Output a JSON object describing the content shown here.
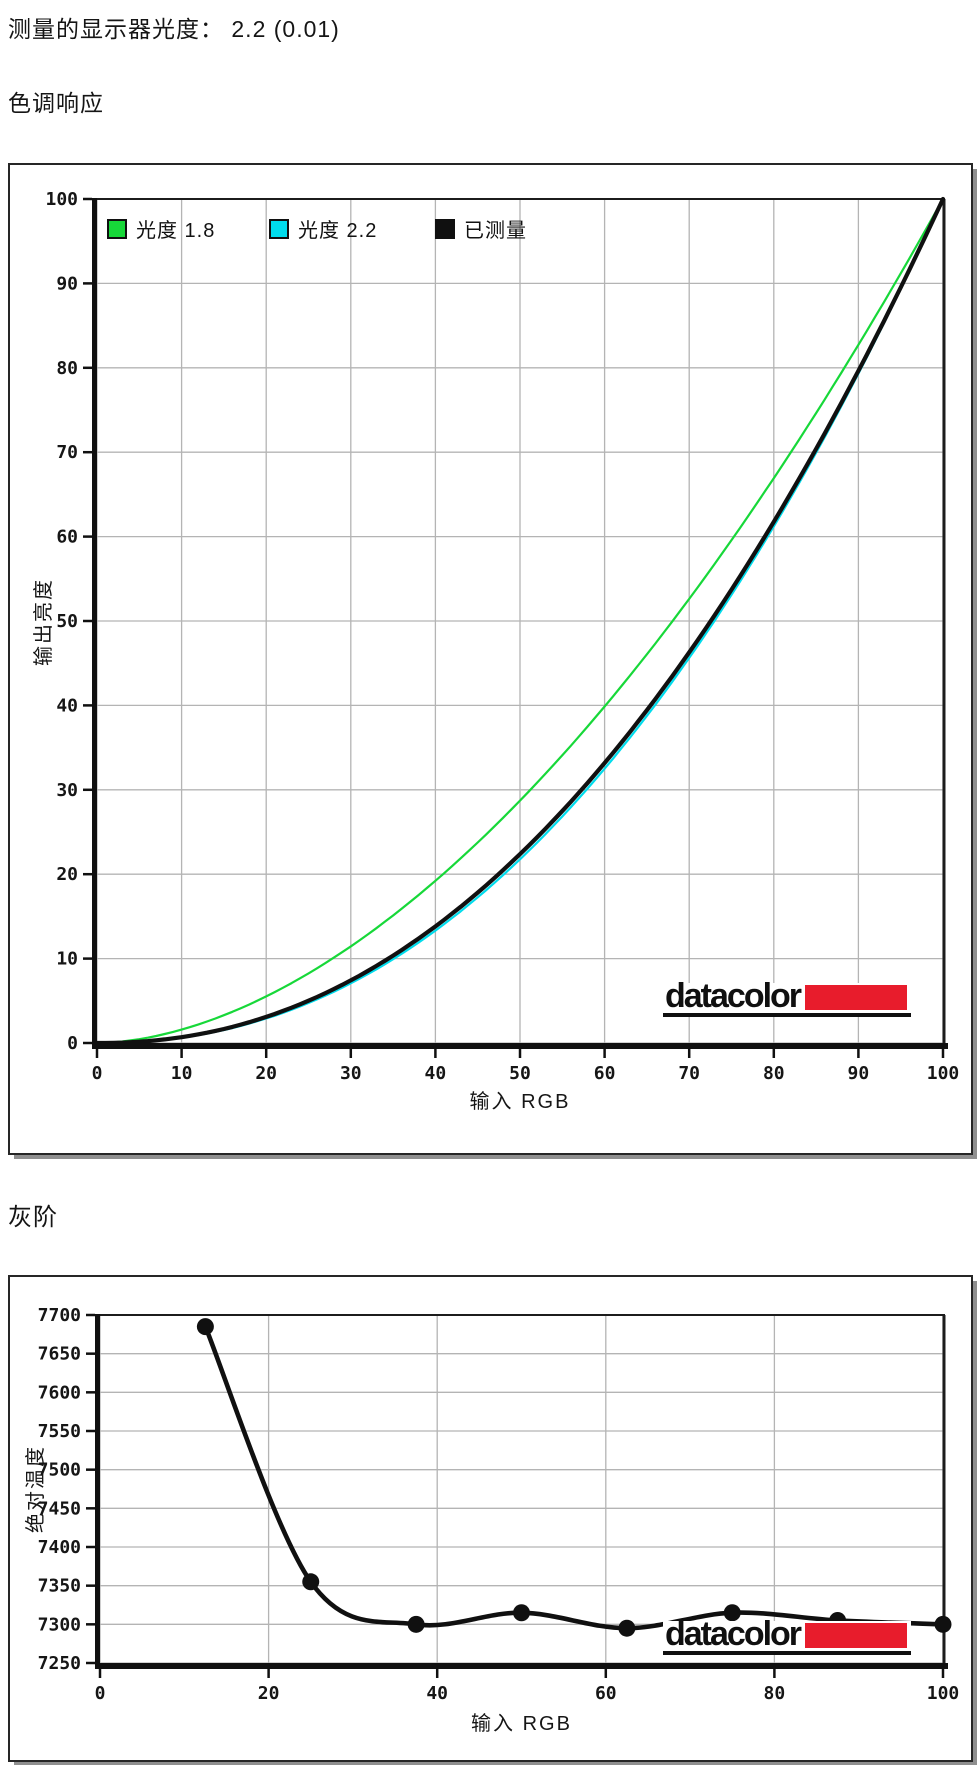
{
  "page": {
    "measured_gamma_heading": "测量的显示器光度：  2.2 (0.01)",
    "section1_title": "色调响应",
    "section2_title": "灰阶"
  },
  "branding": {
    "logo_text": "datacolor",
    "logo_red_color": "#e81c2c"
  },
  "colors": {
    "gridline": "#b4b4b4",
    "axis": "#101010",
    "gamma18_green": "#17d839",
    "gamma22_cyan": "#00dcec",
    "measured_black": "#101010"
  },
  "chart_data": [
    {
      "type": "line",
      "title": "色调响应",
      "xlabel": "输入 RGB",
      "ylabel": "输出亮度",
      "xlim": [
        0,
        100
      ],
      "ylim": [
        0,
        100
      ],
      "xticks": [
        0,
        10,
        20,
        30,
        40,
        50,
        60,
        70,
        80,
        90,
        100
      ],
      "yticks": [
        0,
        10,
        20,
        30,
        40,
        50,
        60,
        70,
        80,
        90,
        100
      ],
      "grid": true,
      "legend_position": "top-left",
      "x_samples": [
        0,
        10,
        20,
        30,
        40,
        50,
        60,
        70,
        80,
        90,
        100
      ],
      "series": [
        {
          "name": "光度 1.8",
          "color": "#17d839",
          "width": 2.2,
          "gamma": 1.8,
          "values": [
            0,
            1.6,
            5.5,
            11.5,
            19.2,
            28.7,
            39.8,
            52.6,
            66.9,
            82.7,
            100
          ]
        },
        {
          "name": "光度 2.2",
          "color": "#00dcec",
          "width": 2.2,
          "gamma": 2.2,
          "values": [
            0,
            0.6,
            2.9,
            7.1,
            13.3,
            21.8,
            32.5,
            45.6,
            61.2,
            79.3,
            100
          ]
        },
        {
          "name": "已测量",
          "color": "#101010",
          "width": 4.2,
          "gamma": 2.16,
          "values": [
            0,
            0.7,
            3.1,
            7.4,
            13.8,
            22.4,
            33.2,
            46.3,
            61.8,
            79.7,
            100
          ]
        }
      ]
    },
    {
      "type": "line",
      "title": "灰阶",
      "xlabel": "输入 RGB",
      "ylabel": "绝对温度",
      "xlim": [
        0,
        100
      ],
      "ylim": [
        7250,
        7700
      ],
      "xticks": [
        0,
        20,
        40,
        60,
        80,
        100
      ],
      "yticks": [
        7250,
        7300,
        7350,
        7400,
        7450,
        7500,
        7550,
        7600,
        7650,
        7700
      ],
      "grid": true,
      "legend_position": "none",
      "series": [
        {
          "name": "已测量",
          "color": "#101010",
          "width": 4.6,
          "marker": "circle",
          "marker_size": 8.5,
          "x": [
            12.5,
            25,
            37.5,
            50,
            62.5,
            75,
            87.5,
            100
          ],
          "y": [
            7685,
            7355,
            7300,
            7315,
            7295,
            7315,
            7305,
            7300
          ]
        }
      ]
    }
  ]
}
